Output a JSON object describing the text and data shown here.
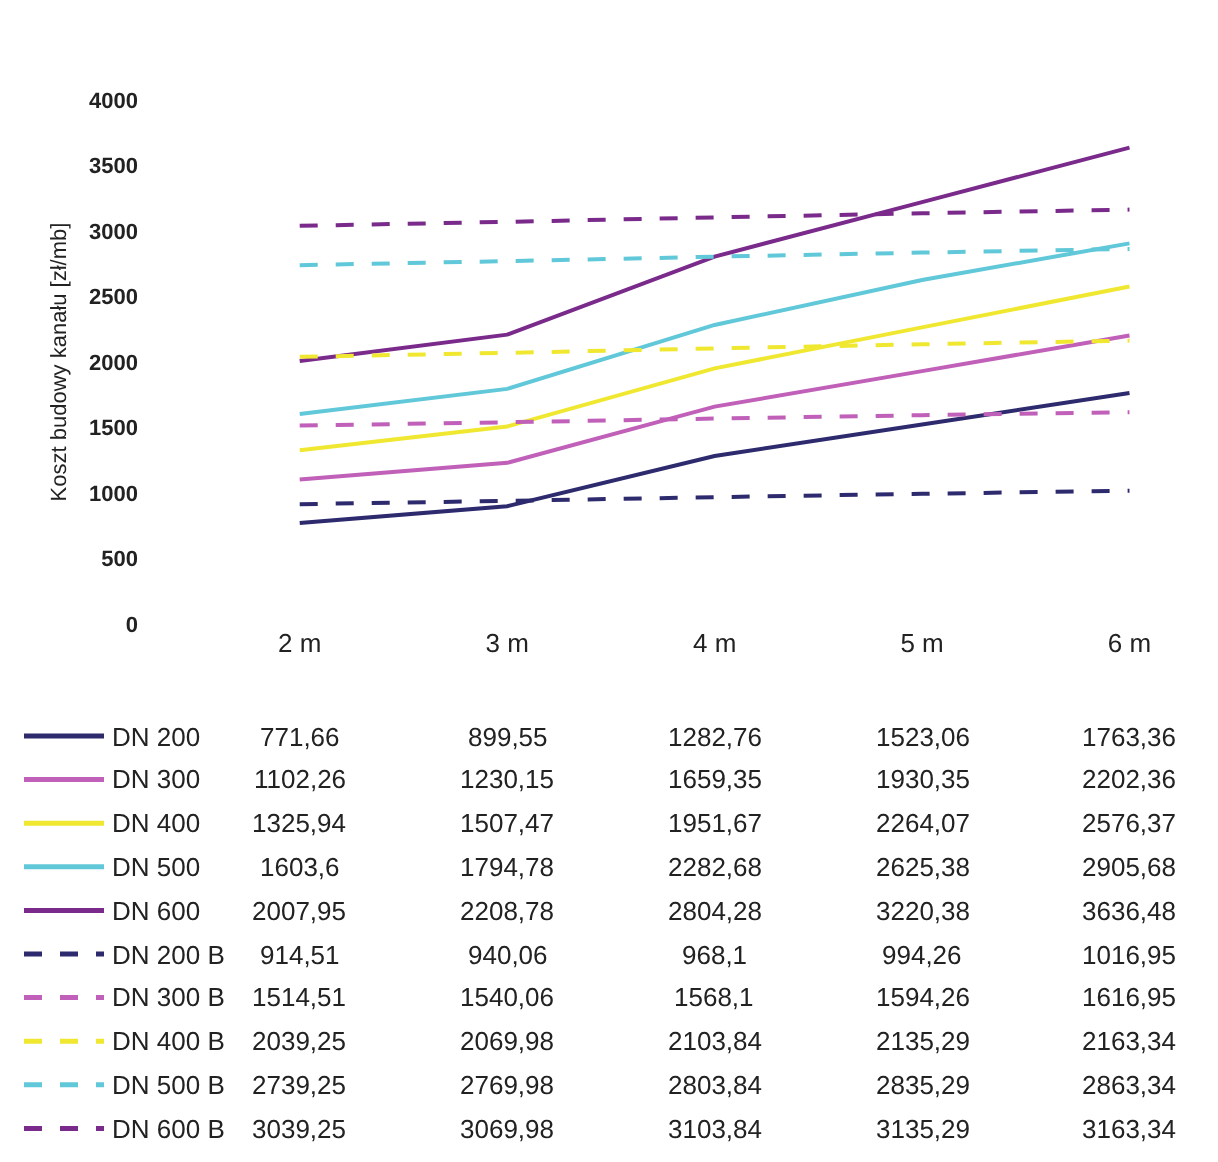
{
  "chart_data": {
    "type": "line",
    "ylabel": "Koszt budowy kanału [zł/mb]",
    "categories": [
      "2 m",
      "3 m",
      "4 m",
      "5 m",
      "6 m"
    ],
    "ylim": [
      0,
      4000
    ],
    "yticks": [
      0,
      500,
      1000,
      1500,
      2000,
      2500,
      3000,
      3500,
      4000
    ],
    "legend": "bottom",
    "series": [
      {
        "name": "DN 200",
        "color": "#2e2a6e",
        "line_style": "solid",
        "values": [
          771.66,
          899.55,
          1282.76,
          1523.06,
          1763.36
        ],
        "value_labels": [
          "771,66",
          "899,55",
          "1282,76",
          "1523,06",
          "1763,36"
        ]
      },
      {
        "name": "DN 300",
        "color": "#c060b8",
        "line_style": "solid",
        "values": [
          1102.26,
          1230.15,
          1659.35,
          1930.35,
          2202.36
        ],
        "value_labels": [
          "1102,26",
          "1230,15",
          "1659,35",
          "1930,35",
          "2202,36"
        ]
      },
      {
        "name": "DN 400",
        "color": "#f0e830",
        "line_style": "solid",
        "values": [
          1325.94,
          1507.47,
          1951.67,
          2264.07,
          2576.37
        ],
        "value_labels": [
          "1325,94",
          "1507,47",
          "1951,67",
          "2264,07",
          "2576,37"
        ]
      },
      {
        "name": "DN 500",
        "color": "#60c8d8",
        "line_style": "solid",
        "values": [
          1603.6,
          1794.78,
          2282.68,
          2625.38,
          2905.68
        ],
        "value_labels": [
          "1603,6",
          "1794,78",
          "2282,68",
          "2625,38",
          "2905,68"
        ]
      },
      {
        "name": "DN 600",
        "color": "#7a2a8a",
        "line_style": "solid",
        "values": [
          2007.95,
          2208.78,
          2804.28,
          3220.38,
          3636.48
        ],
        "value_labels": [
          "2007,95",
          "2208,78",
          "2804,28",
          "3220,38",
          "3636,48"
        ]
      },
      {
        "name": "DN 200 B",
        "color": "#2e2a6e",
        "line_style": "dashed",
        "values": [
          914.51,
          940.06,
          968.1,
          994.26,
          1016.95
        ],
        "value_labels": [
          "914,51",
          "940,06",
          "968,1",
          "994,26",
          "1016,95"
        ]
      },
      {
        "name": "DN 300 B",
        "color": "#c060b8",
        "line_style": "dashed",
        "values": [
          1514.51,
          1540.06,
          1568.1,
          1594.26,
          1616.95
        ],
        "value_labels": [
          "1514,51",
          "1540,06",
          "1568,1",
          "1594,26",
          "1616,95"
        ]
      },
      {
        "name": "DN 400 B",
        "color": "#f0e830",
        "line_style": "dashed",
        "values": [
          2039.25,
          2069.98,
          2103.84,
          2135.29,
          2163.34
        ],
        "value_labels": [
          "2039,25",
          "2069,98",
          "2103,84",
          "2135,29",
          "2163,34"
        ]
      },
      {
        "name": "DN 500 B",
        "color": "#60c8d8",
        "line_style": "dashed",
        "values": [
          2739.25,
          2769.98,
          2803.84,
          2835.29,
          2863.34
        ],
        "value_labels": [
          "2739,25",
          "2769,98",
          "2803,84",
          "2835,29",
          "2863,34"
        ]
      },
      {
        "name": "DN 600 B",
        "color": "#7a2a8a",
        "line_style": "dashed",
        "values": [
          3039.25,
          3069.98,
          3103.84,
          3135.29,
          3163.34
        ],
        "value_labels": [
          "3039,25",
          "3069,98",
          "3103,84",
          "3135,29",
          "3163,34"
        ]
      }
    ]
  }
}
